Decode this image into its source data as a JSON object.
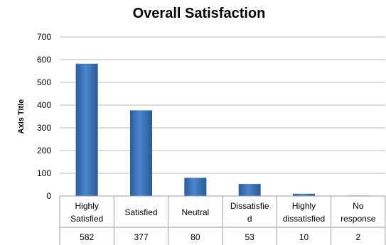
{
  "chart_data": {
    "type": "bar",
    "title": "Overall Satisfaction",
    "xlabel": "",
    "ylabel": "Axis Title",
    "ylim": [
      0,
      700
    ],
    "yticks": [
      0,
      100,
      200,
      300,
      400,
      500,
      600,
      700
    ],
    "grid": true,
    "legend": "none",
    "bar_color": "#3a72b8",
    "categories": [
      [
        "Highly",
        "Satisfied"
      ],
      [
        "Satisfied"
      ],
      [
        "Neutral"
      ],
      [
        "Dissatisfie",
        "d"
      ],
      [
        "Highly",
        "dissatisfied"
      ],
      [
        "No",
        "response"
      ]
    ],
    "values": [
      582,
      377,
      80,
      53,
      10,
      2
    ],
    "data_table": true
  }
}
